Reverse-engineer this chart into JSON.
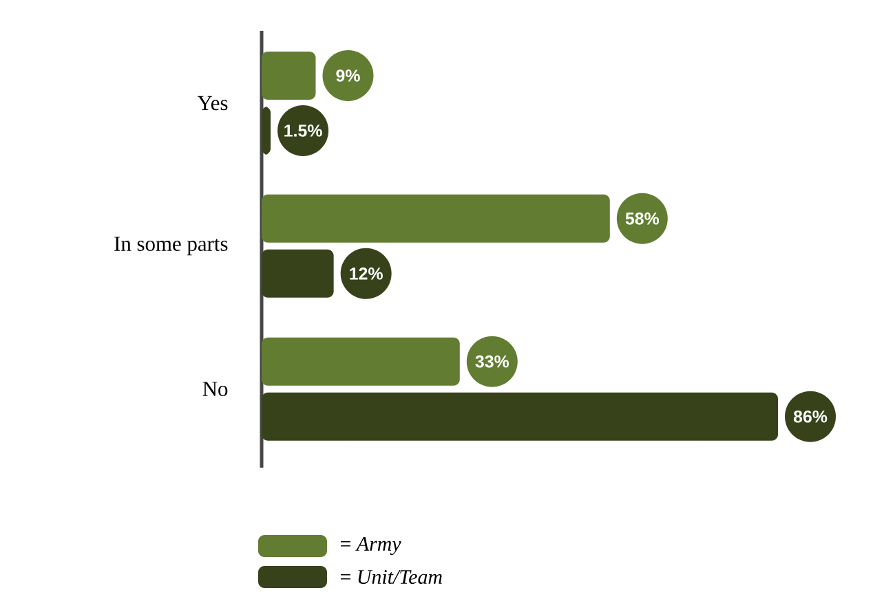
{
  "chart_data": {
    "type": "bar",
    "orientation": "horizontal",
    "categories": [
      "Yes",
      "In some parts",
      "No"
    ],
    "series": [
      {
        "name": "= *Army*",
        "color": "#627d32",
        "values": [
          9,
          58,
          33
        ],
        "value_labels": [
          "9%",
          "58%",
          "33%"
        ]
      },
      {
        "name": "= *Unit/Team*",
        "color": "#37421a",
        "values": [
          1.5,
          12,
          86
        ],
        "value_labels": [
          "1.5%",
          "12%",
          "86%"
        ]
      }
    ],
    "legend": "bottom"
  }
}
